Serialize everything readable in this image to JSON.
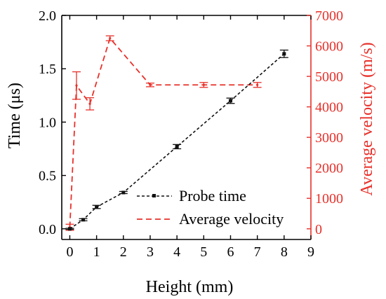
{
  "colors": {
    "left_series": "#111111",
    "right_series": "#e8302a",
    "axis": "#000000",
    "right_axis": "#e8302a"
  },
  "chart_data": {
    "type": "line",
    "xlabel": "Height (mm)",
    "ylabel": "Time (μs)",
    "ylabel_right": "Average velocity (m/s)",
    "xlim": [
      -0.3,
      9
    ],
    "ylim": [
      -0.1,
      2.0
    ],
    "ylim_right": [
      -350,
      7000
    ],
    "x_ticks": [
      0,
      1,
      2,
      3,
      4,
      5,
      6,
      7,
      8,
      9
    ],
    "y_ticks": [
      0.0,
      0.5,
      1.0,
      1.5,
      2.0
    ],
    "y_ticks_labels": [
      "0.0",
      "0.5",
      "1.0",
      "1.5",
      "2.0"
    ],
    "y_ticks_right": [
      0,
      1000,
      2000,
      3000,
      4000,
      5000,
      6000,
      7000
    ],
    "grid": false,
    "legend_position": "bottom-right",
    "series": [
      {
        "name": "Probe time",
        "axis": "left",
        "style": "short-dash with square markers",
        "x": [
          0,
          0.5,
          1,
          2,
          4,
          6,
          8
        ],
        "y": [
          0.0,
          0.085,
          0.205,
          0.34,
          0.77,
          1.2,
          1.64
        ],
        "err": [
          0.005,
          0.01,
          0.015,
          0.01,
          0.02,
          0.025,
          0.035
        ]
      },
      {
        "name": "Average velocity",
        "axis": "right",
        "style": "long-dash",
        "x": [
          0,
          0.25,
          0.75,
          1.5,
          3,
          5,
          7
        ],
        "y": [
          50,
          4700,
          4100,
          6250,
          4720,
          4720,
          4720
        ],
        "err": [
          100,
          450,
          200,
          80,
          60,
          80,
          80
        ]
      }
    ]
  }
}
